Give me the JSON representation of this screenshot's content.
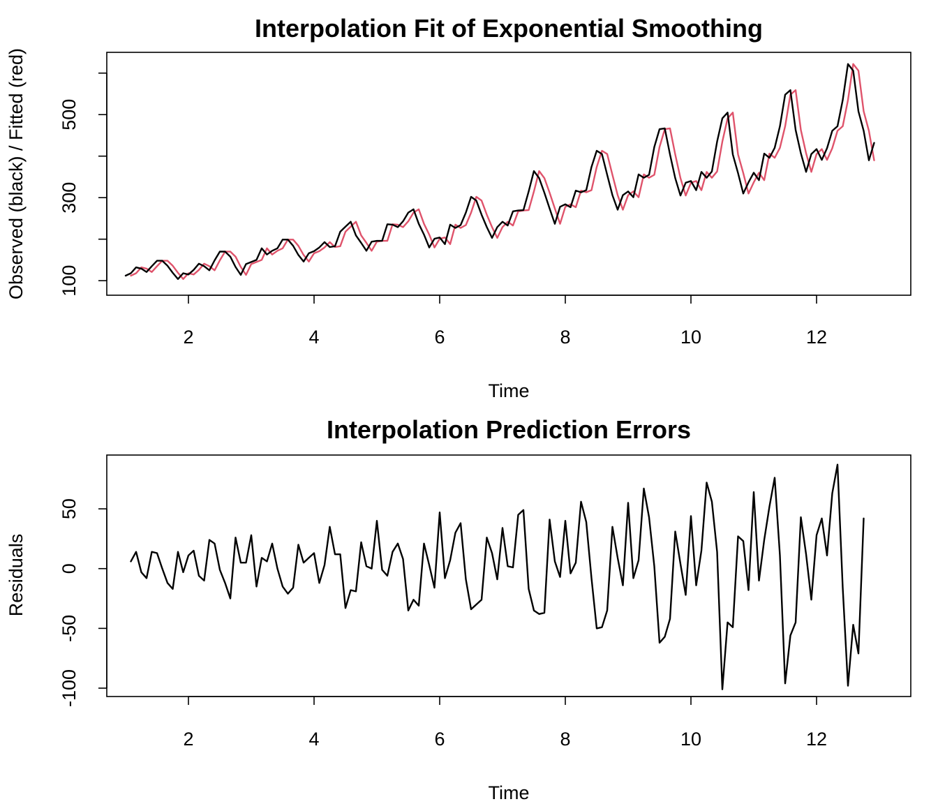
{
  "chart_data": [
    {
      "type": "line",
      "title": "Interpolation Fit of Exponential Smoothing",
      "xlabel": "Time",
      "ylabel": "Observed (black) / Fitted (red)",
      "xlim": [
        0.7,
        13.5
      ],
      "ylim": [
        65,
        650
      ],
      "xticks": [
        2,
        4,
        6,
        8,
        10,
        12
      ],
      "xtick_labels": [
        "2",
        "4",
        "6",
        "8",
        "10",
        "12"
      ],
      "yticks": [
        100,
        200,
        300,
        400,
        500,
        600
      ],
      "ytick_labels": [
        "100",
        "",
        "300",
        "",
        "500",
        ""
      ],
      "start": 1.0,
      "step": 0.0833333,
      "series": [
        {
          "name": "Observed",
          "color": "#000000",
          "values": [
            112,
            118,
            132,
            129,
            121,
            135,
            148,
            148,
            136,
            119,
            104,
            118,
            115,
            126,
            141,
            135,
            125,
            149,
            170,
            170,
            158,
            133,
            114,
            140,
            145,
            150,
            178,
            163,
            172,
            178,
            199,
            199,
            184,
            162,
            146,
            166,
            171,
            180,
            193,
            181,
            183,
            218,
            230,
            242,
            209,
            191,
            172,
            194,
            196,
            196,
            236,
            235,
            229,
            243,
            264,
            272,
            237,
            211,
            180,
            201,
            204,
            188,
            235,
            227,
            234,
            264,
            302,
            293,
            259,
            229,
            203,
            229,
            242,
            233,
            267,
            269,
            270,
            315,
            364,
            347,
            312,
            274,
            237,
            278,
            284,
            277,
            317,
            313,
            318,
            374,
            413,
            405,
            355,
            306,
            271,
            306,
            315,
            301,
            356,
            348,
            355,
            422,
            465,
            467,
            404,
            347,
            305,
            336,
            340,
            318,
            362,
            348,
            363,
            435,
            491,
            505,
            404,
            359,
            310,
            337,
            360,
            342,
            406,
            396,
            420,
            472,
            548,
            559,
            463,
            407,
            362,
            405,
            417,
            391,
            419,
            461,
            472,
            535,
            622,
            606,
            508,
            461,
            390,
            432
          ]
        },
        {
          "name": "Fitted",
          "color": "#DF536B",
          "values": [
            112,
            118,
            132,
            129,
            121,
            135,
            148,
            148,
            136,
            119,
            104,
            118,
            115,
            126,
            141,
            135,
            125,
            149,
            170,
            170,
            158,
            133,
            114,
            140,
            145,
            150,
            178,
            163,
            172,
            178,
            199,
            199,
            184,
            162,
            146,
            166,
            171,
            180,
            193,
            181,
            183,
            218,
            230,
            242,
            209,
            191,
            172,
            194,
            196,
            196,
            236,
            235,
            229,
            243,
            264,
            272,
            237,
            211,
            180,
            201,
            204,
            188,
            235,
            227,
            234,
            264,
            302,
            293,
            259,
            229,
            203,
            229,
            242,
            233,
            267,
            269,
            270,
            315,
            364,
            347,
            312,
            274,
            237,
            278,
            284,
            277,
            317,
            313,
            318,
            374,
            413,
            405,
            355,
            306,
            271,
            306,
            315,
            301,
            356,
            348,
            355,
            422,
            465,
            467,
            404,
            347,
            305,
            336,
            340,
            318,
            362,
            348,
            363,
            435,
            491,
            505,
            404,
            359,
            310,
            337,
            360,
            342,
            406,
            396,
            420,
            472,
            548,
            559,
            463,
            407,
            362,
            405,
            417,
            391,
            419,
            461,
            472,
            535,
            622,
            606,
            508,
            461,
            390
          ],
          "offset": 1
        }
      ]
    },
    {
      "type": "line",
      "title": "Interpolation Prediction Errors",
      "xlabel": "Time",
      "ylabel": "Residuals",
      "xlim": [
        0.7,
        13.5
      ],
      "ylim": [
        -107,
        95
      ],
      "xticks": [
        2,
        4,
        6,
        8,
        10,
        12
      ],
      "xtick_labels": [
        "2",
        "4",
        "6",
        "8",
        "10",
        "12"
      ],
      "yticks": [
        -100,
        -50,
        0,
        50
      ],
      "ytick_labels": [
        "-100",
        "-50",
        "0",
        "50"
      ],
      "start": 1.0833333,
      "step": 0.0833333,
      "series": [
        {
          "name": "Residuals",
          "color": "#000000",
          "values": [
            6,
            14,
            -3,
            -8,
            14,
            13,
            0,
            -12,
            -17,
            14,
            -3,
            11,
            15,
            -6,
            -10,
            24,
            21,
            -1,
            -12,
            -25,
            26,
            5,
            5,
            28,
            -15,
            9,
            6,
            21,
            0,
            -15,
            -21,
            -16,
            20,
            5,
            9,
            13,
            -12,
            3,
            35,
            12,
            12,
            -33,
            -18,
            -19,
            22,
            2,
            0,
            40,
            -1,
            -6,
            14,
            21,
            8,
            -35,
            -26,
            -31,
            21,
            3,
            -16,
            47,
            -8,
            7,
            30,
            38,
            -9,
            -34,
            -30,
            -26,
            26,
            13,
            -9,
            34,
            2,
            1,
            45,
            49,
            -17,
            -35,
            -38,
            -37,
            41,
            6,
            -7,
            40,
            -4,
            5,
            56,
            39,
            -8,
            -50,
            -49,
            -35,
            35,
            9,
            -14,
            55,
            -8,
            7,
            67,
            43,
            2,
            -62,
            -57,
            -42,
            31,
            4,
            -22,
            44,
            -14,
            15,
            72,
            56,
            14,
            -101,
            -45,
            -49,
            27,
            23,
            -18,
            64,
            -10,
            24,
            52,
            76,
            11,
            -96,
            -56,
            -45,
            43,
            12,
            -26,
            28,
            42,
            11,
            63,
            87,
            -16,
            -98,
            -47,
            -71,
            42
          ]
        }
      ]
    }
  ]
}
